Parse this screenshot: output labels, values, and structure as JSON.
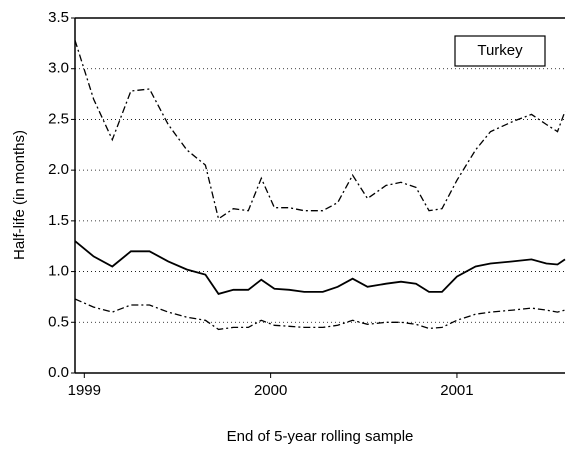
{
  "chart_data": {
    "type": "line",
    "x_label": "End of 5-year rolling sample",
    "y_label": "Half-life (in months)",
    "annotation": "Turkey",
    "x": [
      1998.95,
      1999.05,
      1999.15,
      1999.25,
      1999.35,
      1999.45,
      1999.55,
      1999.65,
      1999.72,
      1999.8,
      1999.88,
      1999.95,
      2000.02,
      2000.1,
      2000.18,
      2000.28,
      2000.36,
      2000.44,
      2000.52,
      2000.62,
      2000.7,
      2000.78,
      2000.85,
      2000.92,
      2001.0,
      2001.1,
      2001.18,
      2001.3,
      2001.4,
      2001.48,
      2001.54,
      2001.58
    ],
    "series": [
      {
        "color": "#000000",
        "style": "dashdot",
        "values": [
          3.28,
          2.7,
          2.3,
          2.78,
          2.8,
          2.45,
          2.2,
          2.05,
          1.52,
          1.62,
          1.6,
          1.92,
          1.63,
          1.63,
          1.6,
          1.6,
          1.68,
          1.95,
          1.72,
          1.85,
          1.88,
          1.83,
          1.6,
          1.62,
          1.9,
          2.2,
          2.38,
          2.48,
          2.55,
          2.45,
          2.38,
          2.58
        ]
      },
      {
        "color": "#000000",
        "style": "solid",
        "values": [
          1.3,
          1.15,
          1.05,
          1.2,
          1.2,
          1.1,
          1.02,
          0.97,
          0.78,
          0.82,
          0.82,
          0.92,
          0.83,
          0.82,
          0.8,
          0.8,
          0.85,
          0.93,
          0.85,
          0.88,
          0.9,
          0.88,
          0.8,
          0.8,
          0.95,
          1.05,
          1.08,
          1.1,
          1.12,
          1.08,
          1.07,
          1.12
        ]
      },
      {
        "color": "#000000",
        "style": "dashdot",
        "values": [
          0.73,
          0.65,
          0.6,
          0.67,
          0.67,
          0.6,
          0.55,
          0.52,
          0.43,
          0.45,
          0.45,
          0.52,
          0.47,
          0.46,
          0.45,
          0.45,
          0.47,
          0.52,
          0.48,
          0.5,
          0.5,
          0.48,
          0.44,
          0.45,
          0.52,
          0.58,
          0.6,
          0.62,
          0.64,
          0.62,
          0.6,
          0.62
        ]
      }
    ],
    "xlim": [
      1998.95,
      2001.58
    ],
    "xticks": [
      1999,
      2000,
      2001
    ],
    "ylim": [
      0,
      3.5
    ],
    "yticks": [
      {
        "value": 0,
        "label": "0.0"
      },
      {
        "value": 0.5,
        "label": "0.5"
      },
      {
        "value": 1,
        "label": "1.0"
      },
      {
        "value": 1.5,
        "label": "1.5"
      },
      {
        "value": 2,
        "label": "2.0"
      },
      {
        "value": 2.5,
        "label": "2.5"
      },
      {
        "value": 3,
        "label": "3.0"
      },
      {
        "value": 3.5,
        "label": "3.5"
      }
    ],
    "grid": true
  }
}
